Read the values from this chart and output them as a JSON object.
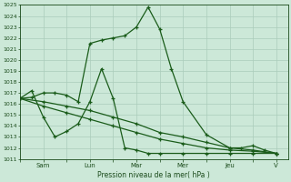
{
  "bg_color": "#cce8d8",
  "grid_color": "#aaccbb",
  "line_color": "#1a5c1a",
  "xlabel": "Pression niveau de la mer( hPa )",
  "ylim": [
    1011,
    1025
  ],
  "yticks": [
    1011,
    1012,
    1013,
    1014,
    1015,
    1016,
    1017,
    1018,
    1019,
    1020,
    1021,
    1022,
    1023,
    1024,
    1025
  ],
  "xtick_labels": [
    "",
    "Sam",
    "",
    "Lun",
    "",
    "Mar",
    "",
    "Mer",
    "",
    "Jeu",
    "",
    "V"
  ],
  "xtick_positions": [
    0,
    1,
    2,
    3,
    4,
    5,
    6,
    7,
    8,
    9,
    10,
    11
  ],
  "xlim": [
    0,
    11.5
  ],
  "series": [
    {
      "x": [
        0,
        0.5,
        1.0,
        1.5,
        2.0,
        2.5,
        3.0,
        3.5,
        4.0,
        4.5,
        5.0,
        5.5,
        6.0,
        6.5,
        7.0,
        8.0,
        9.0,
        9.5,
        10.0,
        10.5,
        11.0
      ],
      "y": [
        1016.5,
        1016.6,
        1017.0,
        1017.0,
        1016.8,
        1016.2,
        1021.5,
        1021.8,
        1022.0,
        1022.2,
        1023.0,
        1024.8,
        1022.8,
        1019.2,
        1016.2,
        1013.2,
        1012.0,
        1012.0,
        1012.2,
        1011.8,
        1011.5
      ]
    },
    {
      "x": [
        0,
        0.5,
        1.0,
        1.5,
        2.0,
        2.5,
        3.0,
        3.5,
        4.0,
        4.5,
        5.0,
        5.5,
        6.0,
        7.0,
        8.0,
        9.0,
        10.0,
        11.0
      ],
      "y": [
        1016.5,
        1017.2,
        1014.8,
        1013.0,
        1013.5,
        1014.2,
        1016.2,
        1019.2,
        1016.5,
        1012.0,
        1011.8,
        1011.5,
        1011.5,
        1011.5,
        1011.5,
        1011.5,
        1011.5,
        1011.5
      ]
    },
    {
      "x": [
        0,
        1.0,
        2.0,
        3.0,
        4.0,
        5.0,
        6.0,
        7.0,
        8.0,
        9.0,
        10.0,
        11.0
      ],
      "y": [
        1016.5,
        1016.2,
        1015.8,
        1015.4,
        1014.8,
        1014.2,
        1013.4,
        1013.0,
        1012.5,
        1012.0,
        1011.8,
        1011.5
      ]
    },
    {
      "x": [
        0,
        1.0,
        2.0,
        3.0,
        4.0,
        5.0,
        6.0,
        7.0,
        8.0,
        9.0,
        10.0,
        11.0
      ],
      "y": [
        1016.5,
        1015.8,
        1015.2,
        1014.6,
        1014.0,
        1013.4,
        1012.8,
        1012.4,
        1012.0,
        1011.8,
        1011.7,
        1011.5
      ]
    }
  ]
}
